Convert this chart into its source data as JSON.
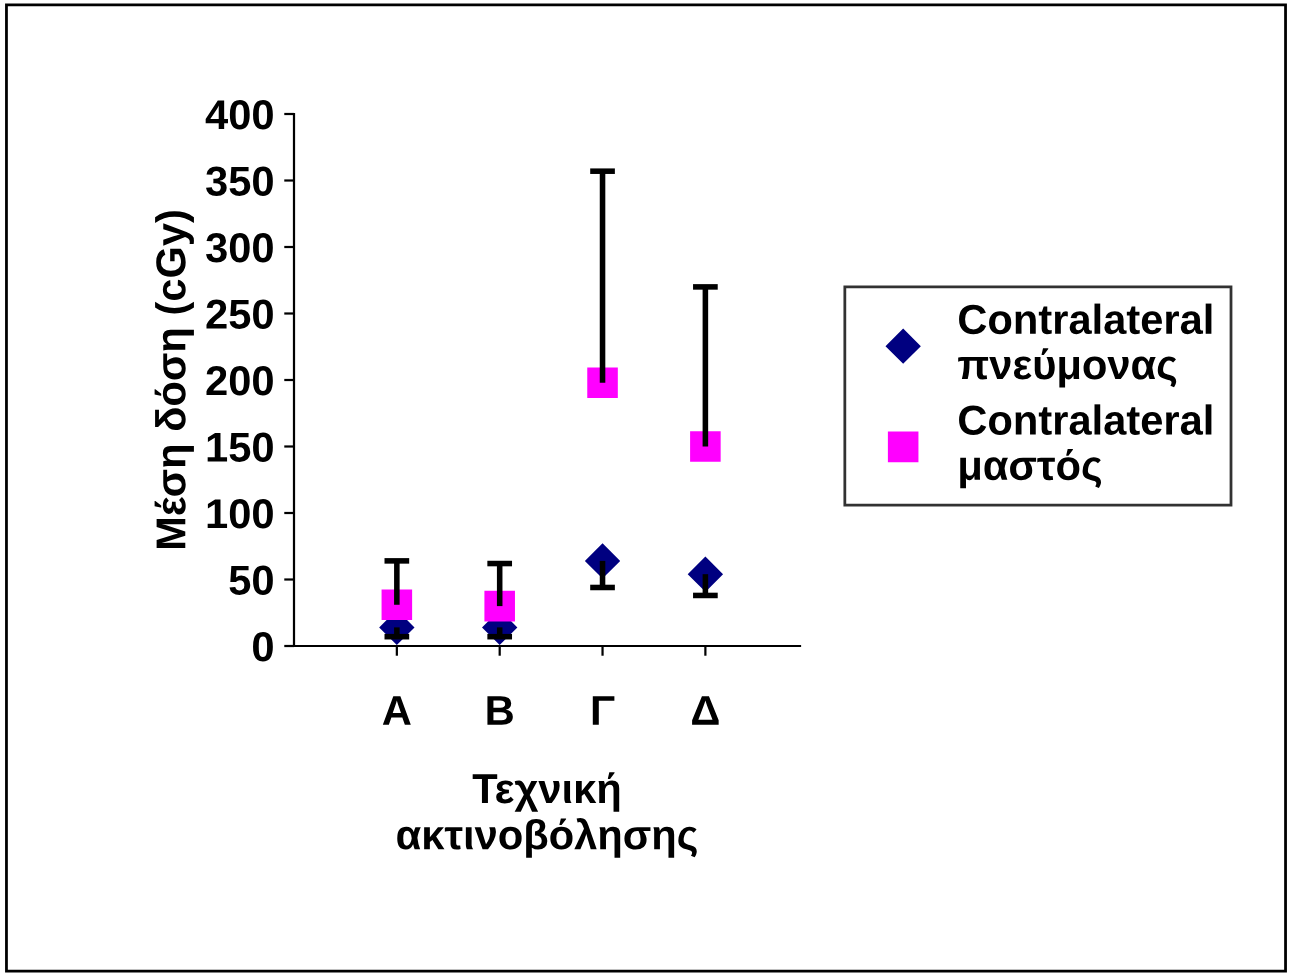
{
  "chart_data": {
    "type": "scatter",
    "xlabel": "Τεχνική\nακτινοβόλησης",
    "ylabel": "Μέση δόση (cGy)",
    "categories": [
      "Α",
      "Β",
      "Γ",
      "Δ"
    ],
    "series": [
      {
        "name": "Contralateral\nπνεύμονας",
        "color": "#000080",
        "marker": "diamond",
        "values": [
          14,
          14,
          64,
          54
        ],
        "errors": [
          [
            7,
            14
          ],
          [
            7,
            14
          ],
          [
            44,
            64
          ],
          [
            38,
            54
          ]
        ]
      },
      {
        "name": "Contralateral\nμαστός",
        "color": "#ff00ff",
        "marker": "square",
        "values": [
          31,
          30,
          198,
          150
        ],
        "errors": [
          [
            31,
            64
          ],
          [
            30,
            62
          ],
          [
            198,
            357
          ],
          [
            150,
            270
          ]
        ]
      }
    ],
    "ylim": [
      0,
      400
    ],
    "yticks": [
      0,
      50,
      100,
      150,
      200,
      250,
      300,
      350,
      400
    ],
    "grid": false,
    "legend": "right"
  }
}
